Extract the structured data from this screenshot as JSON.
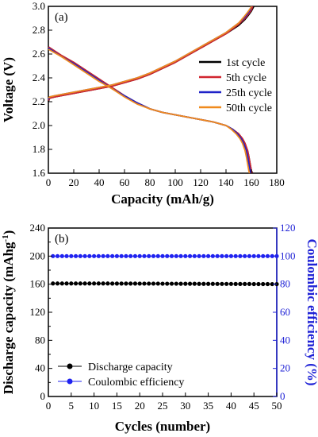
{
  "chart_data": [
    {
      "type": "line",
      "panel_label": "(a)",
      "xlabel": "Capacity (mAh/g)",
      "ylabel": "Voltage (V)",
      "xlim": [
        0,
        180
      ],
      "ylim": [
        1.6,
        3.0
      ],
      "xticks": [
        0,
        20,
        40,
        60,
        80,
        100,
        120,
        140,
        160,
        180
      ],
      "yticks": [
        1.6,
        1.8,
        2.0,
        2.2,
        2.4,
        2.6,
        2.8,
        3.0
      ],
      "grid": false,
      "legend_position": "right",
      "series": [
        {
          "name": "1st cycle",
          "color": "#000000",
          "discharge": {
            "x": [
              0,
              10,
              20,
              30,
              40,
              50,
              60,
              70,
              80,
              90,
              100,
              110,
              120,
              130,
              140,
              145,
              150,
              153,
              155,
              157,
              158,
              159,
              160,
              161
            ],
            "y": [
              2.66,
              2.59,
              2.53,
              2.46,
              2.39,
              2.32,
              2.25,
              2.19,
              2.14,
              2.11,
              2.09,
              2.07,
              2.05,
              2.03,
              2.0,
              1.97,
              1.93,
              1.89,
              1.85,
              1.79,
              1.74,
              1.68,
              1.62,
              1.6
            ]
          },
          "charge": {
            "x": [
              0,
              1,
              5,
              10,
              20,
              30,
              40,
              50,
              60,
              70,
              80,
              90,
              100,
              110,
              120,
              130,
              140,
              150,
              155,
              158,
              160,
              161,
              162
            ],
            "y": [
              2.2,
              2.23,
              2.24,
              2.25,
              2.27,
              2.29,
              2.31,
              2.33,
              2.36,
              2.39,
              2.43,
              2.48,
              2.53,
              2.59,
              2.65,
              2.71,
              2.77,
              2.84,
              2.89,
              2.93,
              2.96,
              2.98,
              3.0
            ]
          }
        },
        {
          "name": "5th cycle",
          "color": "#d1242f",
          "discharge": {
            "x": [
              0,
              10,
              20,
              30,
              40,
              50,
              60,
              70,
              80,
              90,
              100,
              110,
              120,
              130,
              140,
              145,
              150,
              153,
              155,
              157,
              158,
              159,
              160,
              160.5
            ],
            "y": [
              2.66,
              2.59,
              2.53,
              2.46,
              2.39,
              2.32,
              2.25,
              2.19,
              2.14,
              2.11,
              2.09,
              2.07,
              2.05,
              2.03,
              2.0,
              1.97,
              1.93,
              1.89,
              1.85,
              1.79,
              1.74,
              1.68,
              1.62,
              1.6
            ]
          },
          "charge": {
            "x": [
              0,
              1,
              5,
              10,
              20,
              30,
              40,
              50,
              60,
              70,
              80,
              90,
              100,
              110,
              120,
              130,
              140,
              150,
              155,
              158,
              160,
              161
            ],
            "y": [
              2.21,
              2.23,
              2.24,
              2.25,
              2.27,
              2.29,
              2.31,
              2.33,
              2.36,
              2.39,
              2.43,
              2.48,
              2.53,
              2.59,
              2.65,
              2.71,
              2.77,
              2.85,
              2.9,
              2.94,
              2.97,
              3.0
            ]
          }
        },
        {
          "name": "25th cycle",
          "color": "#1f22c8",
          "discharge": {
            "x": [
              0,
              10,
              20,
              30,
              40,
              50,
              60,
              70,
              80,
              90,
              100,
              110,
              120,
              130,
              140,
              145,
              149,
              152,
              154,
              156,
              157,
              158,
              159,
              159.5
            ],
            "y": [
              2.65,
              2.58,
              2.52,
              2.45,
              2.38,
              2.31,
              2.25,
              2.19,
              2.14,
              2.11,
              2.09,
              2.07,
              2.05,
              2.03,
              2.0,
              1.97,
              1.93,
              1.89,
              1.85,
              1.79,
              1.74,
              1.68,
              1.62,
              1.6
            ]
          },
          "charge": {
            "x": [
              0,
              1,
              5,
              10,
              20,
              30,
              40,
              50,
              60,
              70,
              80,
              90,
              100,
              110,
              120,
              130,
              140,
              150,
              154,
              157,
              159,
              160
            ],
            "y": [
              2.22,
              2.24,
              2.25,
              2.26,
              2.28,
              2.3,
              2.32,
              2.34,
              2.37,
              2.4,
              2.44,
              2.49,
              2.54,
              2.6,
              2.66,
              2.72,
              2.78,
              2.86,
              2.9,
              2.94,
              2.97,
              3.0
            ]
          }
        },
        {
          "name": "50th cycle",
          "color": "#f08a1d",
          "discharge": {
            "x": [
              0,
              10,
              20,
              30,
              40,
              50,
              60,
              70,
              80,
              90,
              100,
              110,
              120,
              130,
              140,
              144,
              148,
              151,
              153,
              155,
              156,
              157,
              158,
              158.5
            ],
            "y": [
              2.64,
              2.58,
              2.51,
              2.44,
              2.37,
              2.31,
              2.24,
              2.18,
              2.14,
              2.11,
              2.09,
              2.07,
              2.05,
              2.03,
              2.0,
              1.97,
              1.93,
              1.89,
              1.85,
              1.79,
              1.74,
              1.68,
              1.62,
              1.6
            ]
          },
          "charge": {
            "x": [
              0,
              1,
              5,
              10,
              20,
              30,
              40,
              50,
              60,
              70,
              80,
              90,
              100,
              110,
              120,
              130,
              140,
              150,
              154,
              157,
              159,
              160
            ],
            "y": [
              2.23,
              2.24,
              2.25,
              2.26,
              2.28,
              2.3,
              2.32,
              2.34,
              2.37,
              2.4,
              2.44,
              2.49,
              2.54,
              2.6,
              2.66,
              2.72,
              2.78,
              2.86,
              2.91,
              2.95,
              2.98,
              3.0
            ]
          }
        }
      ]
    },
    {
      "type": "scatter",
      "panel_label": "(b)",
      "xlabel": "Cycles (number)",
      "ylabel": "Discharge capacity (mAhg",
      "ylabel_superscript": "-1",
      "ylabel_suffix": ")",
      "y2label": "Coulombic efficiency (%)",
      "xlim": [
        0,
        50
      ],
      "ylim": [
        0,
        240
      ],
      "y2lim": [
        0,
        120
      ],
      "xticks": [
        0,
        5,
        10,
        15,
        20,
        25,
        30,
        35,
        40,
        45,
        50
      ],
      "yticks": [
        0,
        40,
        80,
        120,
        160,
        200,
        240
      ],
      "yticks_minor": [
        20,
        60,
        100,
        140,
        180,
        220
      ],
      "y2ticks": [
        0,
        20,
        40,
        60,
        80,
        100,
        120
      ],
      "grid": false,
      "legend_position": "bottom-left",
      "series": [
        {
          "name": "Discharge capacity",
          "axis": "left",
          "color": "#000000",
          "x": [
            1,
            2,
            3,
            4,
            5,
            6,
            7,
            8,
            9,
            10,
            11,
            12,
            13,
            14,
            15,
            16,
            17,
            18,
            19,
            20,
            21,
            22,
            23,
            24,
            25,
            26,
            27,
            28,
            29,
            30,
            31,
            32,
            33,
            34,
            35,
            36,
            37,
            38,
            39,
            40,
            41,
            42,
            43,
            44,
            45,
            46,
            47,
            48,
            49,
            50
          ],
          "y": [
            161,
            161,
            161,
            161,
            161,
            161,
            161,
            161,
            161,
            161,
            161,
            161,
            161,
            160.9,
            160.9,
            160.9,
            160.9,
            160.9,
            160.9,
            160.8,
            160.8,
            160.8,
            160.8,
            160.8,
            160.7,
            160.7,
            160.7,
            160.7,
            160.6,
            160.6,
            160.6,
            160.6,
            160.5,
            160.5,
            160.5,
            160.5,
            160.4,
            160.4,
            160.4,
            160.4,
            160.3,
            160.3,
            160.3,
            160.3,
            160.2,
            160.2,
            160.2,
            160.2,
            160.1,
            160.1
          ]
        },
        {
          "name": "Coulombic efficiency",
          "axis": "right",
          "color": "#1f22f0",
          "x": [
            1,
            2,
            3,
            4,
            5,
            6,
            7,
            8,
            9,
            10,
            11,
            12,
            13,
            14,
            15,
            16,
            17,
            18,
            19,
            20,
            21,
            22,
            23,
            24,
            25,
            26,
            27,
            28,
            29,
            30,
            31,
            32,
            33,
            34,
            35,
            36,
            37,
            38,
            39,
            40,
            41,
            42,
            43,
            44,
            45,
            46,
            47,
            48,
            49,
            50
          ],
          "y": [
            100,
            100,
            100,
            100,
            100,
            100,
            100,
            100,
            100,
            100,
            100,
            100,
            100,
            100,
            100,
            100,
            100,
            100,
            100,
            100,
            100,
            100,
            100,
            100,
            100,
            100,
            100,
            100,
            100,
            100,
            100,
            100,
            100,
            100,
            100,
            100,
            100,
            100,
            100,
            100,
            100,
            100,
            100,
            100,
            100,
            100,
            100,
            100,
            100,
            100
          ]
        }
      ]
    }
  ]
}
